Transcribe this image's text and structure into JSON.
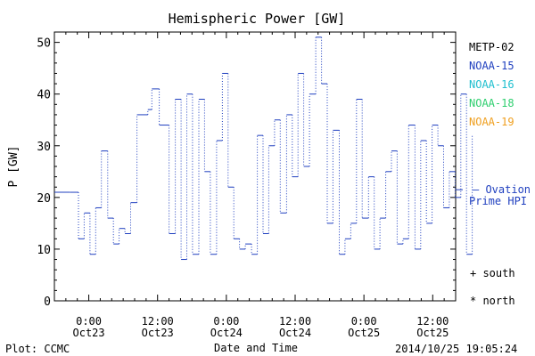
{
  "chart_data": {
    "type": "line",
    "title": "Hemispheric Power [GW]",
    "xlabel": "Date and Time",
    "ylabel": "P [GW]",
    "ylim": [
      0,
      52
    ],
    "y_ticks": [
      0,
      10,
      20,
      30,
      40,
      50
    ],
    "x_range_hours": [
      -6,
      64
    ],
    "x_ticks": [
      {
        "hour": 0,
        "line1": "0:00",
        "line2": "Oct23"
      },
      {
        "hour": 12,
        "line1": "12:00",
        "line2": "Oct23"
      },
      {
        "hour": 24,
        "line1": "0:00",
        "line2": "Oct24"
      },
      {
        "hour": 36,
        "line1": "12:00",
        "line2": "Oct24"
      },
      {
        "hour": 48,
        "line1": "0:00",
        "line2": "Oct25"
      },
      {
        "hour": 60,
        "line1": "12:00",
        "line2": "Oct25"
      }
    ],
    "legend": [
      {
        "name": "METP-02",
        "color": "#000000"
      },
      {
        "name": "NOAA-15",
        "color": "#1f3fbf"
      },
      {
        "name": "NOAA-16",
        "color": "#1fbfcf"
      },
      {
        "name": "NOAA-18",
        "color": "#2fcf6f"
      },
      {
        "name": "NOAA-19",
        "color": "#ef9f1f"
      }
    ],
    "ovation_value": 21.5,
    "ovation_label1": "— Ovation",
    "ovation_label2": "Prime HPI",
    "symbol_south": "+ south",
    "symbol_north": "* north",
    "series": [
      {
        "name": "NOAA-15",
        "color": "#1f3fbf",
        "points": [
          [
            -6.0,
            21
          ],
          [
            -3.3,
            21
          ],
          [
            -1.8,
            12
          ],
          [
            -0.8,
            17
          ],
          [
            0.2,
            9
          ],
          [
            1.2,
            18
          ],
          [
            2.2,
            29
          ],
          [
            3.3,
            16
          ],
          [
            4.3,
            11
          ],
          [
            5.3,
            14
          ],
          [
            6.3,
            13
          ],
          [
            7.3,
            19
          ],
          [
            8.4,
            36
          ],
          [
            10.3,
            37
          ],
          [
            11.0,
            41
          ],
          [
            12.3,
            34
          ],
          [
            14.0,
            13
          ],
          [
            15.1,
            39
          ],
          [
            16.1,
            8
          ],
          [
            17.1,
            40
          ],
          [
            18.1,
            9
          ],
          [
            19.2,
            39
          ],
          [
            20.2,
            25
          ],
          [
            21.2,
            9
          ],
          [
            22.3,
            31
          ],
          [
            23.3,
            44
          ],
          [
            24.3,
            22
          ],
          [
            25.3,
            12
          ],
          [
            26.3,
            10
          ],
          [
            27.3,
            11
          ],
          [
            28.4,
            9
          ],
          [
            29.4,
            32
          ],
          [
            30.4,
            13
          ],
          [
            31.4,
            30
          ],
          [
            32.4,
            35
          ],
          [
            33.4,
            17
          ],
          [
            34.5,
            36
          ],
          [
            35.5,
            24
          ],
          [
            36.5,
            44
          ],
          [
            37.5,
            26
          ],
          [
            38.5,
            40
          ],
          [
            39.6,
            51
          ],
          [
            40.6,
            42
          ],
          [
            41.6,
            15
          ],
          [
            42.6,
            33
          ],
          [
            43.7,
            9
          ],
          [
            44.7,
            12
          ],
          [
            45.7,
            15
          ],
          [
            46.7,
            39
          ],
          [
            47.7,
            16
          ],
          [
            48.8,
            24
          ],
          [
            49.8,
            10
          ],
          [
            50.8,
            16
          ],
          [
            51.8,
            25
          ],
          [
            52.8,
            29
          ],
          [
            53.8,
            11
          ],
          [
            54.8,
            12
          ],
          [
            55.8,
            34
          ],
          [
            56.9,
            10
          ],
          [
            57.9,
            31
          ],
          [
            58.9,
            15
          ],
          [
            59.9,
            34
          ],
          [
            60.9,
            30
          ],
          [
            61.9,
            18
          ],
          [
            62.9,
            25
          ],
          [
            63.9,
            20
          ],
          [
            64.9,
            40
          ],
          [
            65.9,
            9
          ],
          [
            66.9,
            32
          ]
        ]
      }
    ]
  },
  "footer": {
    "plot_source": "Plot: CCMC",
    "timestamp": "2014/10/25 19:05:24"
  }
}
